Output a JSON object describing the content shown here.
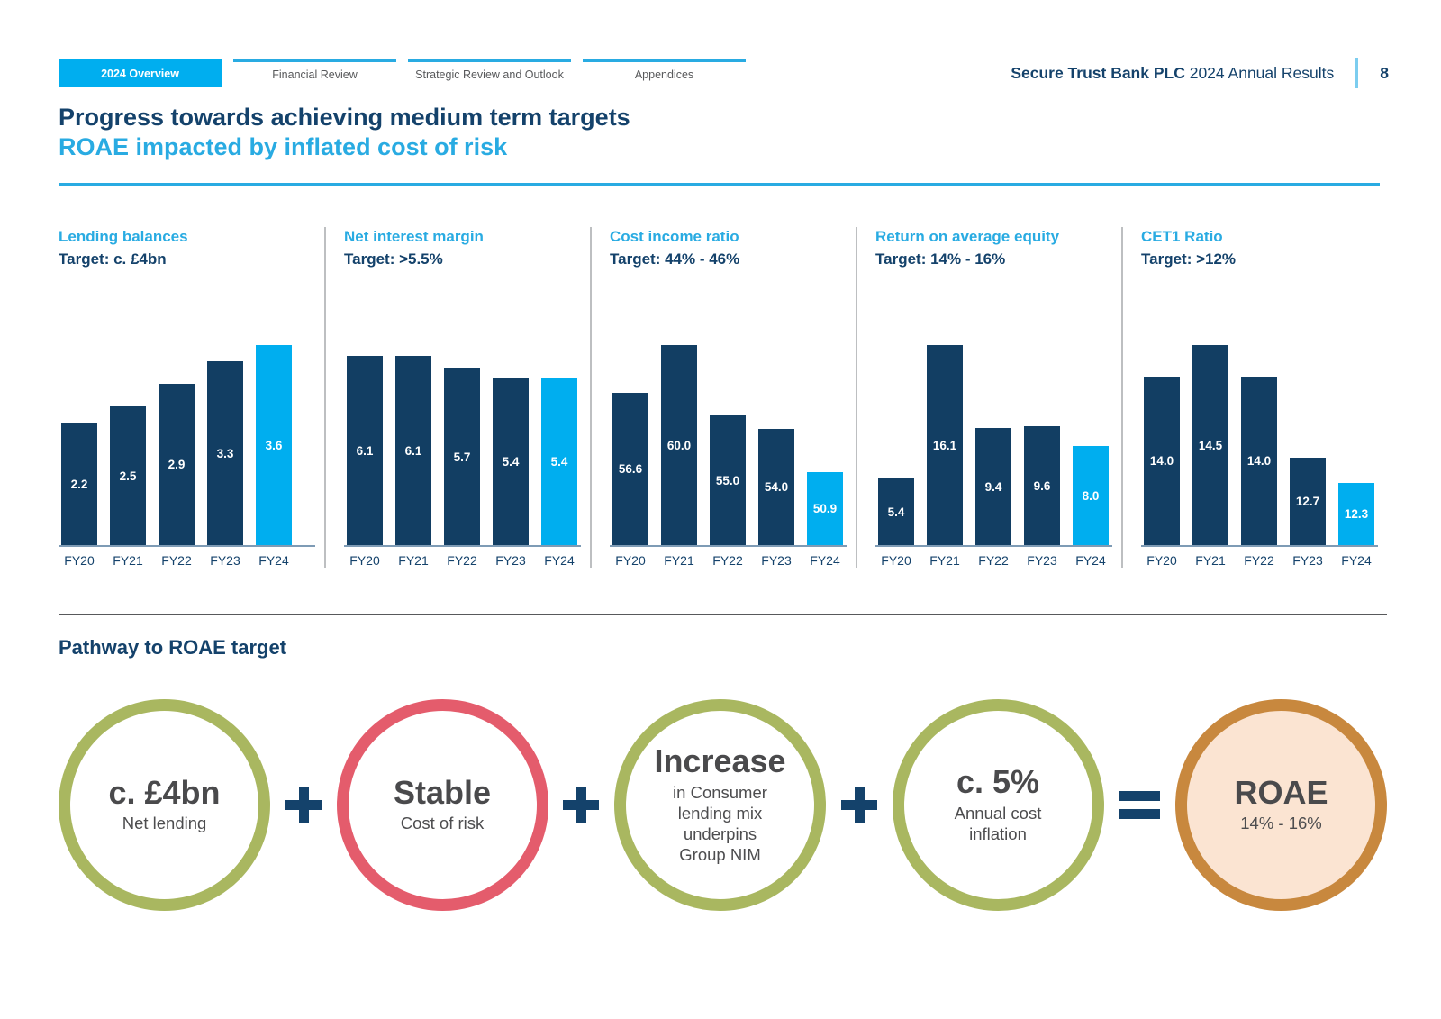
{
  "nav": {
    "tabs": [
      {
        "label": "2024 Overview",
        "active": true
      },
      {
        "label": "Financial Review",
        "active": false
      },
      {
        "label": "Strategic Review and Outlook",
        "active": false
      },
      {
        "label": "Appendices",
        "active": false
      }
    ],
    "brand_bold": "Secure Trust Bank PLC",
    "brand_rest": " 2024 Annual Results",
    "page_number": "8"
  },
  "title": {
    "line1": "Progress towards achieving medium term targets",
    "line2": "ROAE impacted by inflated cost of risk"
  },
  "chart_data": [
    {
      "type": "bar",
      "title": "Lending balances",
      "target": "Target: c. £4bn",
      "categories": [
        "FY20",
        "FY21",
        "FY22",
        "FY23",
        "FY24"
      ],
      "values": [
        2.2,
        2.5,
        2.9,
        3.3,
        3.6
      ],
      "labels": [
        "2.2",
        "2.5",
        "2.9",
        "3.3",
        "3.6"
      ],
      "ylim": [
        0,
        3.6
      ],
      "highlight_last": true
    },
    {
      "type": "bar",
      "title": "Net interest margin",
      "target": "Target: >5.5%",
      "categories": [
        "FY20",
        "FY21",
        "FY22",
        "FY23",
        "FY24"
      ],
      "values": [
        6.1,
        6.1,
        5.7,
        5.4,
        5.4
      ],
      "labels": [
        "6.1",
        "6.1",
        "5.7",
        "5.4",
        "5.4"
      ],
      "ylim": [
        0,
        6.45
      ],
      "highlight_last": true
    },
    {
      "type": "bar",
      "title": "Cost income ratio",
      "target": "Target: 44% - 46%",
      "categories": [
        "FY20",
        "FY21",
        "FY22",
        "FY23",
        "FY24"
      ],
      "values": [
        56.6,
        60.0,
        55.0,
        54.0,
        50.9
      ],
      "labels": [
        "56.6",
        "60.0",
        "55.0",
        "54.0",
        "50.9"
      ],
      "ylim": [
        45.7,
        60
      ],
      "highlight_last": true
    },
    {
      "type": "bar",
      "title": "Return on average equity",
      "target": "Target: 14% - 16%",
      "categories": [
        "FY20",
        "FY21",
        "FY22",
        "FY23",
        "FY24"
      ],
      "values": [
        5.4,
        16.1,
        9.4,
        9.6,
        8.0
      ],
      "labels": [
        "5.4",
        "16.1",
        "9.4",
        "9.6",
        "8.0"
      ],
      "ylim": [
        0,
        16.1
      ],
      "highlight_last": true
    },
    {
      "type": "bar",
      "title": "CET1 Ratio",
      "target": "Target: >12%",
      "categories": [
        "FY20",
        "FY21",
        "FY22",
        "FY23",
        "FY24"
      ],
      "values": [
        14.0,
        14.5,
        14.0,
        12.7,
        12.3
      ],
      "labels": [
        "14.0",
        "14.5",
        "14.0",
        "12.7",
        "12.3"
      ],
      "ylim": [
        11.3,
        14.5
      ],
      "highlight_last": true
    }
  ],
  "pathway": {
    "heading": "Pathway to ROAE target",
    "steps": [
      {
        "main": "c. £4bn",
        "sub": "Net lending",
        "ring_color": "#A9B760"
      },
      {
        "main": "Stable",
        "sub": "Cost of risk",
        "ring_color": "#E45C6C"
      },
      {
        "main": "Increase",
        "sub": "in Consumer lending mix underpins Group NIM",
        "ring_color": "#A9B760"
      },
      {
        "main": "c. 5%",
        "sub": "Annual cost inflation",
        "ring_color": "#A9B760"
      },
      {
        "main": "ROAE",
        "sub": "14% - 16%",
        "ring_color": "#C8883E",
        "fill_color": "#FBE4D2"
      }
    ],
    "operators": [
      "+",
      "+",
      "+",
      "="
    ]
  },
  "colors": {
    "navy": "#14426B",
    "bar_navy": "#123E63",
    "accent_cyan": "#29ABE2",
    "bar_cyan": "#00AEEF",
    "gray_text": "#58595B",
    "axis_line": "#7E9BB5",
    "olive_ring": "#A9B760",
    "red_ring": "#E45C6C",
    "orange_ring": "#C8883E",
    "peach_fill": "#FBE4D2"
  }
}
